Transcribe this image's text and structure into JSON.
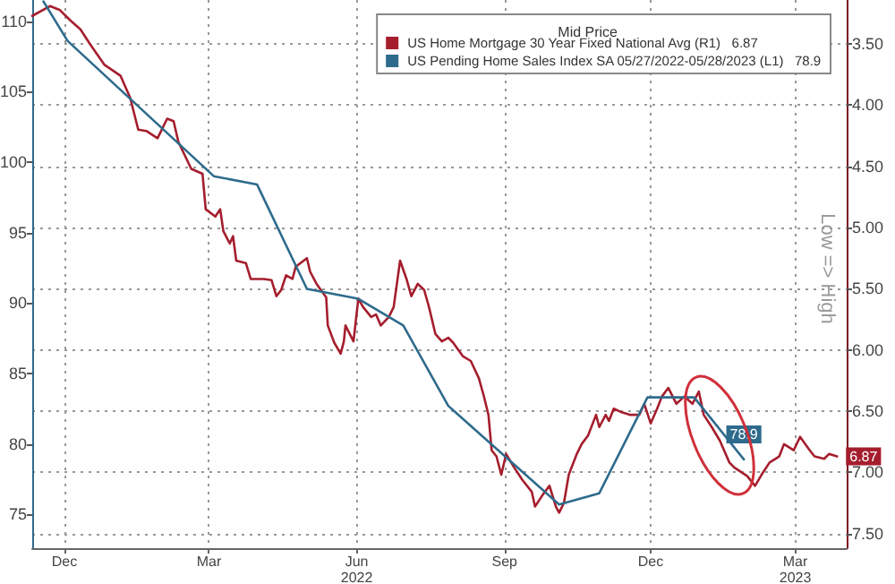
{
  "chart_data": {
    "type": "line",
    "legend_title": "Mid Price",
    "y2label": "Low => High",
    "xlim": [
      "2021-11-11",
      "2023-04-02"
    ],
    "xticks": [
      {
        "value": "2021-12-01",
        "label": "Dec"
      },
      {
        "value": "2022-03-01",
        "label": "Mar"
      },
      {
        "value": "2022-06-01",
        "label": "Jun\n2022"
      },
      {
        "value": "2022-09-01",
        "label": "Sep"
      },
      {
        "value": "2022-12-01",
        "label": "Dec"
      },
      {
        "value": "2023-03-01",
        "label": "Mar\n2023"
      }
    ],
    "ylim": [
      72.6,
      111.5
    ],
    "yticks": [
      75,
      80,
      85,
      90,
      95,
      100,
      105,
      110
    ],
    "y2lim": [
      7.62,
      3.14
    ],
    "y2ticks": [
      {
        "value": 3.5,
        "label": "3.50"
      },
      {
        "value": 4,
        "label": "4.00"
      },
      {
        "value": 4.5,
        "label": "4.50"
      },
      {
        "value": 5,
        "label": "5.00"
      },
      {
        "value": 5.5,
        "label": "5.50"
      },
      {
        "value": 6,
        "label": "6.00"
      },
      {
        "value": 6.5,
        "label": "6.50"
      },
      {
        "value": 7,
        "label": "7.00"
      },
      {
        "value": 7.5,
        "label": "7.50"
      }
    ],
    "grid": true,
    "legend": "top right",
    "series": [
      {
        "name": "US Home Mortgage 30 Year Fixed National Avg (R1)   6.87",
        "color": "#a51e2d",
        "axis": "y2",
        "x": [
          "2021-11-11",
          "2021-11-22",
          "2021-11-28",
          "2021-12-05",
          "2021-12-11",
          "2021-12-17",
          "2021-12-26",
          "2022-01-05",
          "2022-01-11",
          "2022-01-16",
          "2022-01-21",
          "2022-01-28",
          "2022-02-03",
          "2022-02-07",
          "2022-02-10",
          "2022-02-18",
          "2022-02-25",
          "2022-02-27",
          "2022-03-05",
          "2022-03-08",
          "2022-03-10",
          "2022-03-14",
          "2022-03-16",
          "2022-03-18",
          "2022-03-24",
          "2022-03-27",
          "2022-04-04",
          "2022-04-09",
          "2022-04-12",
          "2022-04-15",
          "2022-04-18",
          "2022-04-22",
          "2022-04-24",
          "2022-04-27",
          "2022-05-01",
          "2022-05-03",
          "2022-05-07",
          "2022-05-13",
          "2022-05-14",
          "2022-05-18",
          "2022-05-22",
          "2022-05-24",
          "2022-05-25",
          "2022-05-30",
          "2022-06-02",
          "2022-06-05",
          "2022-06-10",
          "2022-06-13",
          "2022-06-16",
          "2022-06-21",
          "2022-06-24",
          "2022-06-28",
          "2022-07-02",
          "2022-07-05",
          "2022-07-09",
          "2022-07-13",
          "2022-07-16",
          "2022-07-20",
          "2022-07-24",
          "2022-07-28",
          "2022-07-31",
          "2022-08-06",
          "2022-08-11",
          "2022-08-16",
          "2022-08-19",
          "2022-08-22",
          "2022-08-24",
          "2022-08-27",
          "2022-08-30",
          "2022-09-02",
          "2022-09-07",
          "2022-09-12",
          "2022-09-18",
          "2022-09-20",
          "2022-09-25",
          "2022-09-29",
          "2022-10-03",
          "2022-10-05",
          "2022-10-08",
          "2022-10-11",
          "2022-10-16",
          "2022-10-19",
          "2022-10-23",
          "2022-10-28",
          "2022-10-30",
          "2022-11-03",
          "2022-11-05",
          "2022-11-08",
          "2022-11-13",
          "2022-11-18",
          "2022-11-24",
          "2022-11-27",
          "2022-12-01",
          "2022-12-05",
          "2022-12-08",
          "2022-12-12",
          "2022-12-17",
          "2022-12-22",
          "2022-12-27",
          "2022-12-31",
          "2023-01-03",
          "2023-01-08",
          "2023-01-13",
          "2023-01-19",
          "2023-01-22",
          "2023-01-30",
          "2023-02-04",
          "2023-02-08",
          "2023-02-13",
          "2023-02-19",
          "2023-02-22",
          "2023-02-28",
          "2023-03-04",
          "2023-03-10",
          "2023-03-13",
          "2023-03-19",
          "2023-03-22",
          "2023-03-27"
        ],
        "values": [
          3.27,
          3.19,
          3.22,
          3.31,
          3.38,
          3.5,
          3.67,
          3.76,
          3.94,
          4.2,
          4.21,
          4.27,
          4.11,
          4.13,
          4.3,
          4.52,
          4.56,
          4.85,
          4.91,
          4.85,
          5.03,
          5.13,
          5.07,
          5.27,
          5.29,
          5.42,
          5.42,
          5.43,
          5.56,
          5.51,
          5.39,
          5.42,
          5.32,
          5.29,
          5.25,
          5.36,
          5.46,
          5.57,
          5.8,
          5.94,
          6.03,
          5.93,
          5.8,
          5.93,
          5.58,
          5.65,
          5.73,
          5.71,
          5.8,
          5.73,
          5.65,
          5.27,
          5.42,
          5.56,
          5.46,
          5.51,
          5.65,
          5.87,
          5.93,
          5.9,
          5.94,
          6.05,
          6.09,
          6.23,
          6.37,
          6.53,
          6.82,
          6.87,
          7.02,
          6.85,
          6.96,
          7.06,
          7.16,
          7.28,
          7.18,
          7.11,
          7.28,
          7.33,
          7.25,
          7.02,
          6.85,
          6.77,
          6.7,
          6.53,
          6.63,
          6.53,
          6.58,
          6.48,
          6.51,
          6.53,
          6.53,
          6.44,
          6.6,
          6.48,
          6.38,
          6.31,
          6.44,
          6.38,
          6.44,
          6.34,
          6.53,
          6.63,
          6.74,
          6.92,
          6.96,
          7.03,
          7.11,
          7.02,
          6.92,
          6.87,
          6.77,
          6.82,
          6.71,
          6.82,
          6.87,
          6.89,
          6.85,
          6.87
        ],
        "value_labels": [
          null,
          null,
          null,
          null,
          null,
          null,
          null,
          null,
          null,
          null,
          null,
          null,
          null,
          null,
          null,
          null,
          null,
          null,
          null,
          null,
          null,
          null,
          null,
          null,
          null,
          null,
          null,
          null,
          null,
          null,
          null,
          null,
          null,
          null,
          null,
          null,
          null,
          null,
          null,
          null,
          null,
          null,
          null,
          null,
          null,
          null,
          null,
          null,
          null,
          null,
          null,
          null,
          null,
          null,
          null,
          null,
          null,
          null,
          null,
          null,
          null,
          null,
          null,
          null,
          null,
          null,
          null,
          null,
          null,
          null,
          null,
          null,
          null,
          null,
          null,
          null,
          null,
          null,
          null,
          null,
          null,
          null,
          null,
          null,
          null,
          null,
          null,
          null,
          null,
          null,
          null,
          null,
          null,
          null,
          null,
          null,
          null,
          null,
          null,
          null,
          null,
          null,
          null,
          null,
          null,
          null,
          null,
          null,
          null,
          null,
          null,
          null,
          null,
          null,
          null,
          null,
          null,
          "6.87"
        ]
      },
      {
        "name": "US Pending Home Sales Index SA 05/27/2022-05/28/2023 (L1)   78.9",
        "color": "#2e6b8c",
        "x": [
          "2021-11-18",
          "2021-12-03",
          "2022-03-04",
          "2022-03-31",
          "2022-05-01",
          "2022-06-02",
          "2022-06-30",
          "2022-07-28",
          "2022-10-05",
          "2022-10-30",
          "2022-11-29",
          "2022-12-28",
          "2023-01-28"
        ],
        "values": [
          111.4,
          108.6,
          99.0,
          98.4,
          91.0,
          90.3,
          88.4,
          82.7,
          75.7,
          76.5,
          83.3,
          83.3,
          78.9
        ],
        "value_labels": [
          null,
          null,
          null,
          null,
          null,
          null,
          null,
          null,
          null,
          null,
          null,
          null,
          "78.9"
        ]
      }
    ]
  }
}
